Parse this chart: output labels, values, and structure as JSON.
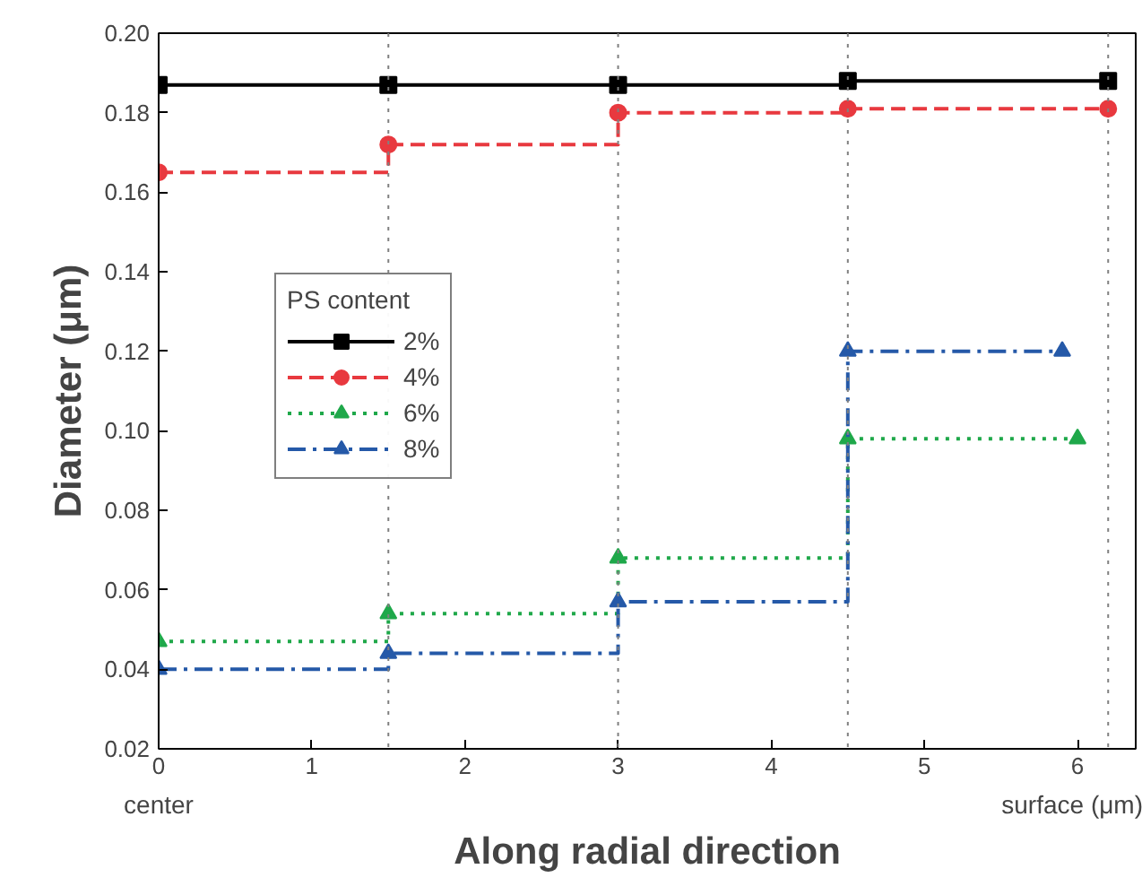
{
  "chart_data": {
    "type": "step",
    "xlabel": "Along radial direction",
    "ylabel": "Diameter (μm)",
    "legend_title": "PS content",
    "legend": "left",
    "grid": false,
    "xlim": [
      0,
      6.38
    ],
    "ylim": [
      0.02,
      0.2
    ],
    "xticks": [
      0,
      1,
      2,
      3,
      4,
      5,
      6
    ],
    "yticks": [
      {
        "value": 0.02,
        "label": "0.02"
      },
      {
        "value": 0.04,
        "label": "0.04"
      },
      {
        "value": 0.06,
        "label": "0.06"
      },
      {
        "value": 0.08,
        "label": "0.08"
      },
      {
        "value": 0.1,
        "label": "0.10"
      },
      {
        "value": 0.12,
        "label": "0.12"
      },
      {
        "value": 0.14,
        "label": "0.14"
      },
      {
        "value": 0.16,
        "label": "0.16"
      },
      {
        "value": 0.18,
        "label": "0.18"
      },
      {
        "value": 0.2,
        "label": "0.20"
      }
    ],
    "series": [
      {
        "name": "2%",
        "color": "#000000",
        "marker": "square",
        "line_style": "solid",
        "x": [
          0,
          1.5,
          3,
          4.5,
          6.2
        ],
        "values": [
          0.187,
          0.187,
          0.187,
          0.188,
          0.188
        ]
      },
      {
        "name": "4%",
        "color": "#e8393f",
        "marker": "circle",
        "line_style": "dashed",
        "x": [
          0,
          1.5,
          3,
          4.5,
          6.2
        ],
        "values": [
          0.165,
          0.172,
          0.18,
          0.181,
          0.181
        ]
      },
      {
        "name": "6%",
        "color": "#1fa84a",
        "marker": "triangle",
        "line_style": "dotted",
        "x": [
          0,
          1.5,
          3,
          4.5,
          6
        ],
        "values": [
          0.047,
          0.054,
          0.068,
          0.098,
          0.098
        ]
      },
      {
        "name": "8%",
        "color": "#2559a8",
        "marker": "triangle",
        "line_style": "dashdot",
        "x": [
          0,
          1.5,
          3,
          4.5,
          5.9
        ],
        "values": [
          0.04,
          0.044,
          0.057,
          0.12,
          0.12
        ]
      }
    ],
    "ref_lines": [
      {
        "axis": "x",
        "value": 1.5,
        "color": "#808080",
        "line_style": "dotted"
      },
      {
        "axis": "x",
        "value": 3,
        "color": "#808080",
        "line_style": "dotted"
      },
      {
        "axis": "x",
        "value": 4.5,
        "color": "#808080",
        "line_style": "dotted"
      },
      {
        "axis": "x",
        "value": 6.2,
        "color": "#808080",
        "line_style": "dotted"
      }
    ],
    "annotations": [
      "center",
      "surface (μm)"
    ]
  }
}
